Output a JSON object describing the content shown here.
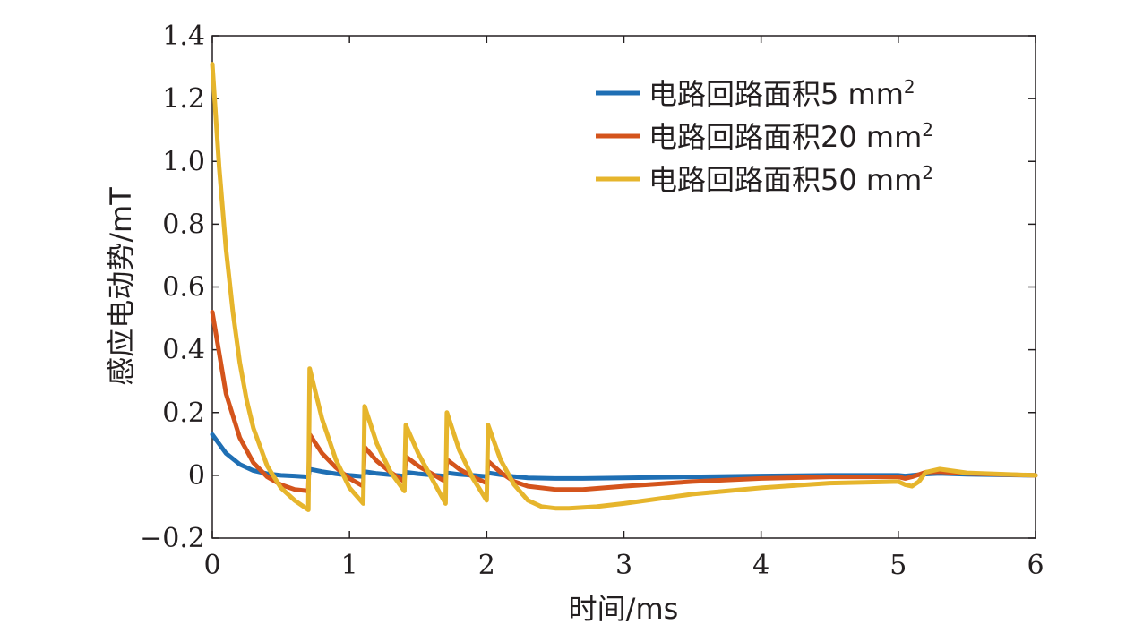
{
  "chart_data": {
    "type": "line",
    "title": "",
    "xlabel": "时间/ms",
    "ylabel": "感应电动势/mT",
    "xlim": [
      0,
      6
    ],
    "ylim": [
      -0.2,
      1.4
    ],
    "xticks": [
      0,
      1,
      2,
      3,
      4,
      5,
      6
    ],
    "xtick_labels": [
      "0",
      "1",
      "2",
      "3",
      "4",
      "5",
      "6"
    ],
    "yticks": [
      -0.2,
      0,
      0.2,
      0.4,
      0.6,
      0.8,
      1.0,
      1.2,
      1.4
    ],
    "ytick_labels": [
      "−0.2",
      "0",
      "0.2",
      "0.4",
      "0.6",
      "0.8",
      "1.0",
      "1.2",
      "1.4"
    ],
    "grid": false,
    "legend_position": "top-right",
    "series": [
      {
        "name": "电路回路面积5 mm",
        "name_sup": "2",
        "color": "#1f6fb4",
        "x": [
          0,
          0.1,
          0.2,
          0.3,
          0.4,
          0.5,
          0.6,
          0.7,
          0.71,
          0.8,
          0.9,
          1.0,
          1.1,
          1.11,
          1.2,
          1.3,
          1.4,
          1.41,
          1.5,
          1.6,
          1.7,
          1.71,
          1.8,
          1.9,
          2.0,
          2.01,
          2.1,
          2.2,
          2.3,
          2.5,
          2.7,
          3.0,
          3.5,
          4.0,
          4.5,
          5.0,
          5.05,
          5.1,
          5.2,
          5.3,
          5.5,
          6.0
        ],
        "y": [
          0.13,
          0.07,
          0.035,
          0.015,
          0.005,
          0,
          -0.002,
          -0.005,
          0.02,
          0.012,
          0.005,
          0,
          -0.004,
          0.012,
          0.006,
          0.002,
          -0.003,
          0.01,
          0.005,
          0.001,
          -0.003,
          0.008,
          0.003,
          0,
          -0.004,
          0.008,
          0.002,
          -0.004,
          -0.008,
          -0.01,
          -0.01,
          -0.008,
          -0.005,
          -0.002,
          0,
          0,
          -0.002,
          0,
          0.004,
          0.006,
          0.003,
          0
        ]
      },
      {
        "name": "电路回路面积20 mm",
        "name_sup": "2",
        "color": "#d4541c",
        "x": [
          0,
          0.1,
          0.2,
          0.3,
          0.4,
          0.5,
          0.6,
          0.7,
          0.71,
          0.8,
          0.9,
          1.0,
          1.1,
          1.11,
          1.2,
          1.3,
          1.4,
          1.41,
          1.5,
          1.6,
          1.7,
          1.71,
          1.8,
          1.9,
          2.0,
          2.01,
          2.1,
          2.2,
          2.3,
          2.5,
          2.7,
          3.0,
          3.5,
          4.0,
          4.5,
          5.0,
          5.05,
          5.1,
          5.2,
          5.3,
          5.5,
          6.0
        ],
        "y": [
          0.52,
          0.26,
          0.12,
          0.04,
          -0.005,
          -0.03,
          -0.045,
          -0.05,
          0.13,
          0.07,
          0.025,
          -0.01,
          -0.035,
          0.09,
          0.045,
          0.01,
          -0.02,
          0.06,
          0.03,
          0.005,
          -0.02,
          0.05,
          0.02,
          -0.005,
          -0.025,
          0.045,
          0.01,
          -0.02,
          -0.035,
          -0.045,
          -0.045,
          -0.035,
          -0.02,
          -0.01,
          -0.005,
          -0.005,
          -0.01,
          -0.005,
          0.01,
          0.012,
          0.006,
          0
        ]
      },
      {
        "name": "电路回路面积50 mm",
        "name_sup": "2",
        "color": "#e6b52c",
        "x": [
          0,
          0.05,
          0.1,
          0.15,
          0.2,
          0.25,
          0.3,
          0.4,
          0.5,
          0.6,
          0.7,
          0.71,
          0.8,
          0.9,
          1.0,
          1.1,
          1.11,
          1.2,
          1.3,
          1.4,
          1.41,
          1.5,
          1.6,
          1.7,
          1.71,
          1.8,
          1.9,
          2.0,
          2.01,
          2.1,
          2.2,
          2.3,
          2.4,
          2.5,
          2.6,
          2.8,
          3.0,
          3.5,
          4.0,
          4.5,
          5.0,
          5.05,
          5.1,
          5.15,
          5.2,
          5.3,
          5.5,
          6.0
        ],
        "y": [
          1.31,
          0.98,
          0.72,
          0.52,
          0.36,
          0.24,
          0.15,
          0.03,
          -0.04,
          -0.08,
          -0.11,
          0.34,
          0.18,
          0.05,
          -0.04,
          -0.09,
          0.22,
          0.1,
          0.01,
          -0.05,
          0.16,
          0.07,
          -0.01,
          -0.09,
          0.2,
          0.08,
          -0.01,
          -0.08,
          0.16,
          0.05,
          -0.03,
          -0.08,
          -0.1,
          -0.105,
          -0.105,
          -0.1,
          -0.09,
          -0.06,
          -0.04,
          -0.025,
          -0.02,
          -0.03,
          -0.035,
          -0.02,
          0.01,
          0.02,
          0.008,
          0
        ]
      }
    ]
  }
}
